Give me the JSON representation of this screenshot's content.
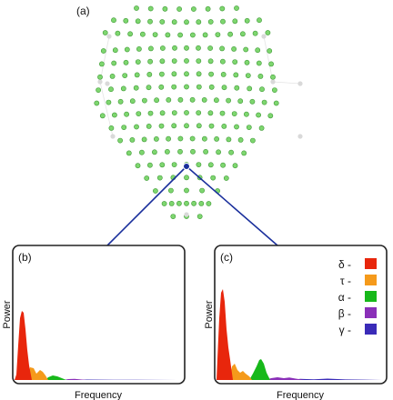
{
  "panels": {
    "a": {
      "label": "(a)"
    },
    "b": {
      "label": "(b)",
      "xlabel": "Frequency",
      "ylabel": "Power"
    },
    "c": {
      "label": "(c)",
      "xlabel": "Frequency",
      "ylabel": "Power"
    }
  },
  "legend": {
    "items": [
      {
        "symbol": "δ",
        "dash": "-",
        "color": "#e8260c"
      },
      {
        "symbol": "τ",
        "dash": "-",
        "color": "#f59a1b"
      },
      {
        "symbol": "α",
        "dash": "-",
        "color": "#17b81a"
      },
      {
        "symbol": "β",
        "dash": "-",
        "color": "#8a2fb8"
      },
      {
        "symbol": "γ",
        "dash": "-",
        "color": "#3a2bb8"
      }
    ]
  },
  "colors": {
    "electrode_fill": "#7ed66f",
    "electrode_stroke": "#3f9a36",
    "reference_electrode": "#d9d9d9",
    "connector_line": "#1a2f9c",
    "panel_border": "#222222"
  },
  "electrode_grid": {
    "rows": 17,
    "selected": "center-bottom"
  }
}
